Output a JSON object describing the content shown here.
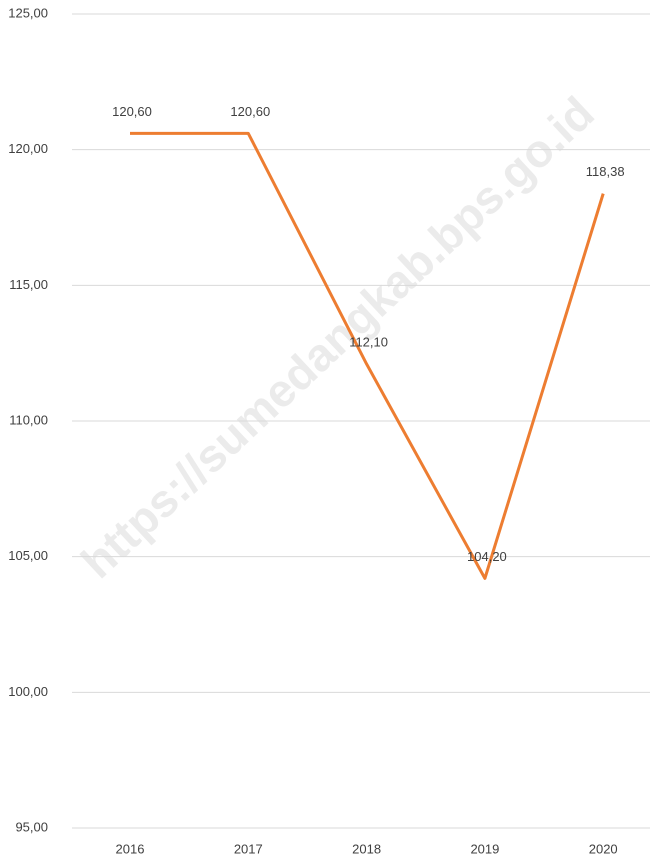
{
  "chart_data": {
    "type": "line",
    "watermark": "https://sumedangkab.bps.go.id",
    "categories": [
      "2016",
      "2017",
      "2018",
      "2019",
      "2020"
    ],
    "series": [
      {
        "name": null,
        "color": "#ed7d31",
        "values": [
          120.6,
          120.6,
          112.1,
          104.2,
          118.38
        ],
        "value_labels": [
          "120,60",
          "120,60",
          "112,10",
          "104,20",
          "118,38"
        ]
      }
    ],
    "ylim": [
      95,
      125
    ],
    "yticks": [
      {
        "value": 95,
        "label": "95,00"
      },
      {
        "value": 100,
        "label": "100,00"
      },
      {
        "value": 105,
        "label": "105,00"
      },
      {
        "value": 110,
        "label": "110,00"
      },
      {
        "value": 115,
        "label": "115,00"
      },
      {
        "value": 120,
        "label": "120,00"
      },
      {
        "value": 125,
        "label": "125,00"
      }
    ],
    "grid": true
  }
}
